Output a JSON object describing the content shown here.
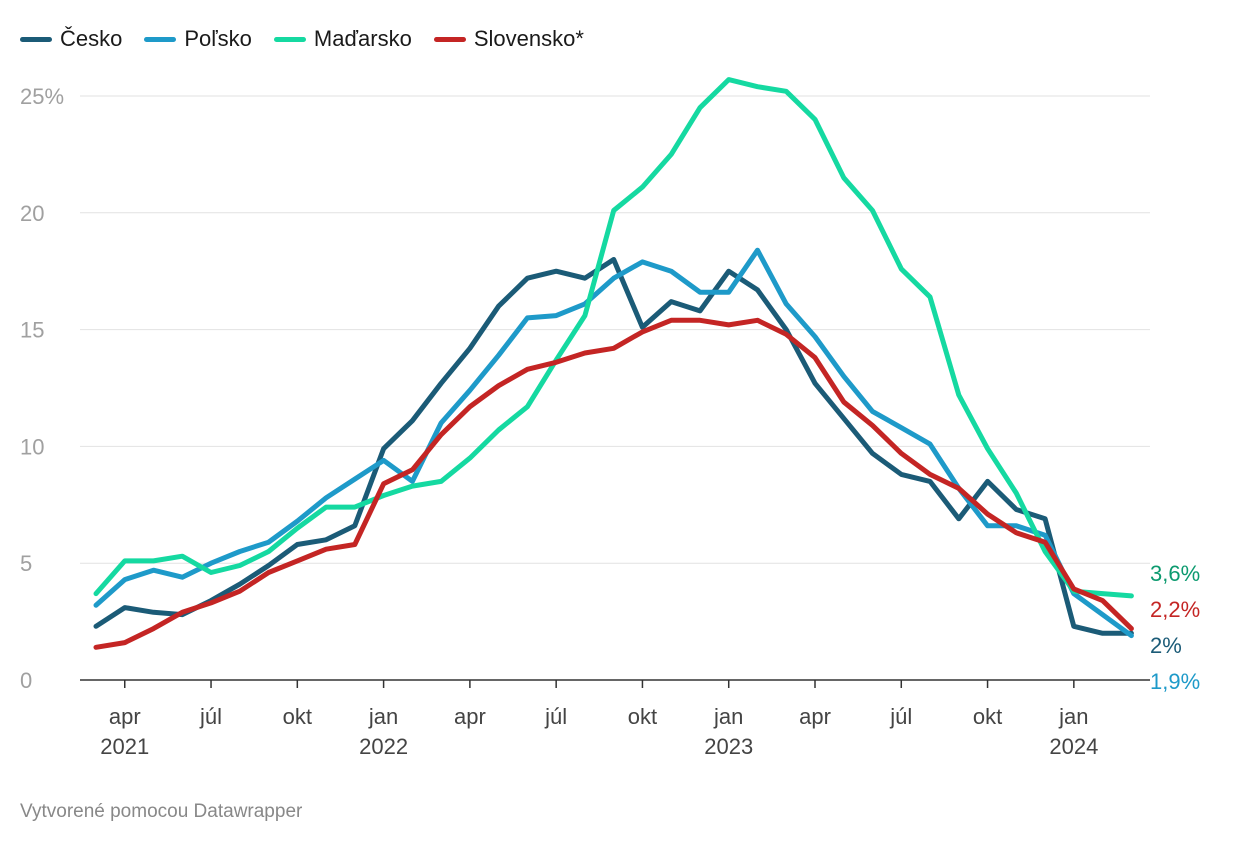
{
  "chart_data": {
    "type": "line",
    "x_start": "2021-03",
    "x": [
      "2021-03",
      "2021-04",
      "2021-05",
      "2021-06",
      "2021-07",
      "2021-08",
      "2021-09",
      "2021-10",
      "2021-11",
      "2021-12",
      "2022-01",
      "2022-02",
      "2022-03",
      "2022-04",
      "2022-05",
      "2022-06",
      "2022-07",
      "2022-08",
      "2022-09",
      "2022-10",
      "2022-11",
      "2022-12",
      "2023-01",
      "2023-02",
      "2023-03",
      "2023-04",
      "2023-05",
      "2023-06",
      "2023-07",
      "2023-08",
      "2023-09",
      "2023-10",
      "2023-11",
      "2023-12",
      "2024-01",
      "2024-02",
      "2024-03"
    ],
    "series": [
      {
        "name": "Česko",
        "color": "#1b5b77",
        "end_label": "2%",
        "values": [
          2.3,
          3.1,
          2.9,
          2.8,
          3.4,
          4.1,
          4.9,
          5.8,
          6.0,
          6.6,
          9.9,
          11.1,
          12.7,
          14.2,
          16.0,
          17.2,
          17.5,
          17.2,
          18.0,
          15.1,
          16.2,
          15.8,
          17.5,
          16.7,
          15.0,
          12.7,
          11.2,
          9.7,
          8.8,
          8.5,
          6.9,
          8.5,
          7.3,
          6.9,
          2.3,
          2.0,
          2.0
        ]
      },
      {
        "name": "Poľsko",
        "color": "#1e9ac9",
        "end_label": "1,9%",
        "values": [
          3.2,
          4.3,
          4.7,
          4.4,
          5.0,
          5.5,
          5.9,
          6.8,
          7.8,
          8.6,
          9.4,
          8.5,
          11.0,
          12.4,
          13.9,
          15.5,
          15.6,
          16.1,
          17.2,
          17.9,
          17.5,
          16.6,
          16.6,
          18.4,
          16.1,
          14.7,
          13.0,
          11.5,
          10.8,
          10.1,
          8.2,
          6.6,
          6.6,
          6.2,
          3.7,
          2.8,
          1.9
        ]
      },
      {
        "name": "Maďarsko",
        "color": "#15d9a1",
        "end_label": "3,6%",
        "values": [
          3.7,
          5.1,
          5.1,
          5.3,
          4.6,
          4.9,
          5.5,
          6.5,
          7.4,
          7.4,
          7.9,
          8.3,
          8.5,
          9.5,
          10.7,
          11.7,
          13.7,
          15.6,
          20.1,
          21.1,
          22.5,
          24.5,
          25.7,
          25.4,
          25.2,
          24.0,
          21.5,
          20.1,
          17.6,
          16.4,
          12.2,
          9.9,
          8.0,
          5.5,
          3.8,
          3.7,
          3.6
        ]
      },
      {
        "name": "Slovensko*",
        "color": "#c42524",
        "end_label": "2,2%",
        "values": [
          1.4,
          1.6,
          2.2,
          2.9,
          3.3,
          3.8,
          4.6,
          5.1,
          5.6,
          5.8,
          8.4,
          9.0,
          10.5,
          11.7,
          12.6,
          13.3,
          13.6,
          14.0,
          14.2,
          14.9,
          15.4,
          15.4,
          15.2,
          15.4,
          14.8,
          13.8,
          11.9,
          10.9,
          9.7,
          8.8,
          8.2,
          7.1,
          6.3,
          5.9,
          3.9,
          3.4,
          2.2
        ]
      }
    ],
    "ylim": [
      0,
      27
    ],
    "yticks": [
      {
        "value": 0,
        "label": "0"
      },
      {
        "value": 5,
        "label": "5"
      },
      {
        "value": 10,
        "label": "10"
      },
      {
        "value": 15,
        "label": "15"
      },
      {
        "value": 20,
        "label": "20"
      },
      {
        "value": 25,
        "label": "25%"
      }
    ],
    "xticks": [
      {
        "month": 1,
        "label": "apr",
        "sublabel": "2021"
      },
      {
        "month": 4,
        "label": "júl",
        "sublabel": ""
      },
      {
        "month": 7,
        "label": "okt",
        "sublabel": ""
      },
      {
        "month": 10,
        "label": "jan",
        "sublabel": "2022"
      },
      {
        "month": 13,
        "label": "apr",
        "sublabel": ""
      },
      {
        "month": 16,
        "label": "júl",
        "sublabel": ""
      },
      {
        "month": 19,
        "label": "okt",
        "sublabel": ""
      },
      {
        "month": 22,
        "label": "jan",
        "sublabel": "2023"
      },
      {
        "month": 25,
        "label": "apr",
        "sublabel": ""
      },
      {
        "month": 28,
        "label": "júl",
        "sublabel": ""
      },
      {
        "month": 31,
        "label": "okt",
        "sublabel": ""
      },
      {
        "month": 34,
        "label": "jan",
        "sublabel": "2024"
      }
    ],
    "grid": true,
    "legend_position": "top-left"
  },
  "footer": {
    "credit": "Vytvorené pomocou Datawrapper"
  }
}
